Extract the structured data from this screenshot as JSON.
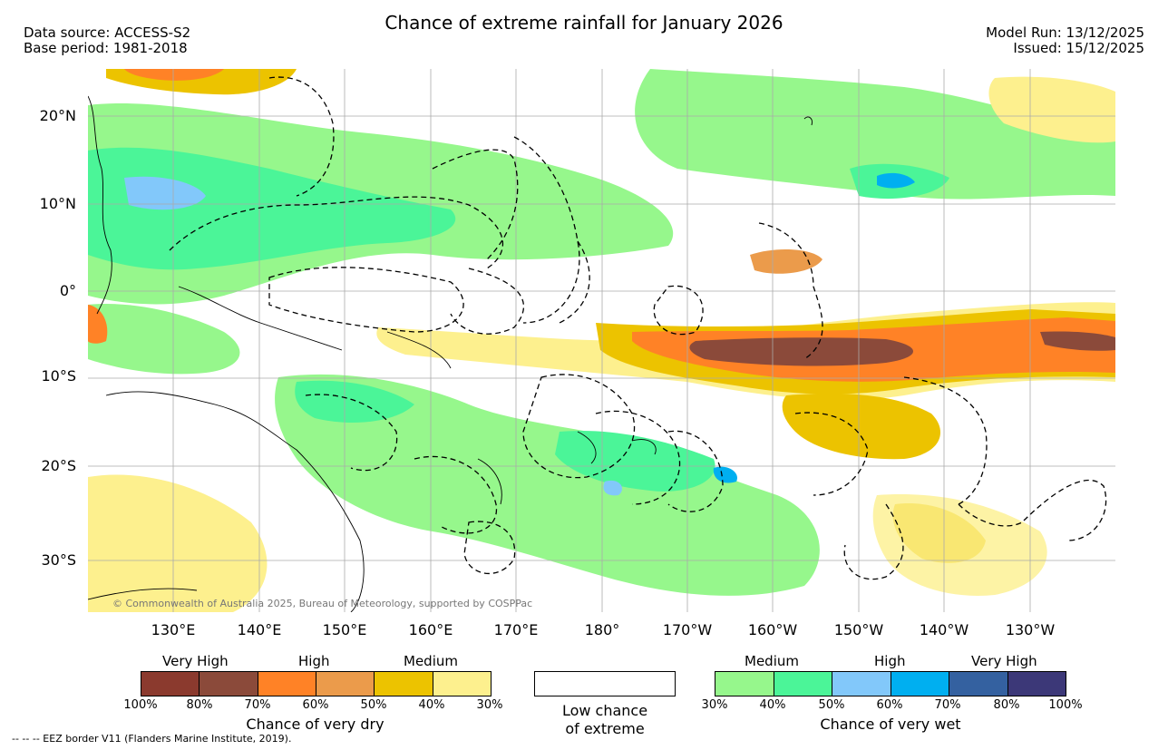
{
  "title": "Chance of extreme rainfall for January 2026",
  "data_source": "Data source: ACCESS-S2",
  "base_period": "Base period: 1981-2018",
  "model_run": "Model Run: 13/12/2025",
  "issued": "Issued: 15/12/2025",
  "copyright": "© Commonwealth of Australia 2025, Bureau of Meteorology, supported by COSPPac",
  "eez_note": "-- -- -- EEZ border V11 (Flanders Marine Institute, 2019).",
  "latitude_labels": [
    "20°N",
    "10°N",
    "0°",
    "10°S",
    "20°S",
    "30°S"
  ],
  "longitude_labels": [
    "130°E",
    "140°E",
    "150°E",
    "160°E",
    "170°E",
    "180°",
    "170°W",
    "160°W",
    "150°W",
    "140°W",
    "130°W"
  ],
  "dry_legend": {
    "levels": [
      "Very High",
      "High",
      "Medium"
    ],
    "colors": [
      "#8b3a2e",
      "#8b4a3a",
      "#ff8226",
      "#eb9b4b",
      "#ecc300",
      "#fdf08e"
    ],
    "ticks": [
      "100%",
      "80%",
      "70%",
      "60%",
      "50%",
      "40%",
      "30%"
    ],
    "caption": "Chance of very dry"
  },
  "low_legend": {
    "caption_line1": "Low chance",
    "caption_line2": "of extreme",
    "color": "#ffffff"
  },
  "wet_legend": {
    "levels": [
      "Medium",
      "High",
      "Very High"
    ],
    "colors": [
      "#96f78c",
      "#4bf598",
      "#82c8fa",
      "#00aff0",
      "#3461a0",
      "#3c3878"
    ],
    "ticks": [
      "30%",
      "40%",
      "50%",
      "60%",
      "70%",
      "80%",
      "100%"
    ],
    "caption": "Chance of very wet"
  },
  "colors": {
    "dry_medium": "#ecc300",
    "dry_low": "#fdf08e",
    "dry_high": "#ff8226",
    "dry_high_light": "#eb9b4b",
    "dry_very_high": "#8b4a3a",
    "wet_medium": "#96f78c",
    "wet_medium_dark": "#4bf598",
    "wet_high": "#82c8fa",
    "wet_high_dark": "#00aff0",
    "grid": "#aaaaaa"
  }
}
